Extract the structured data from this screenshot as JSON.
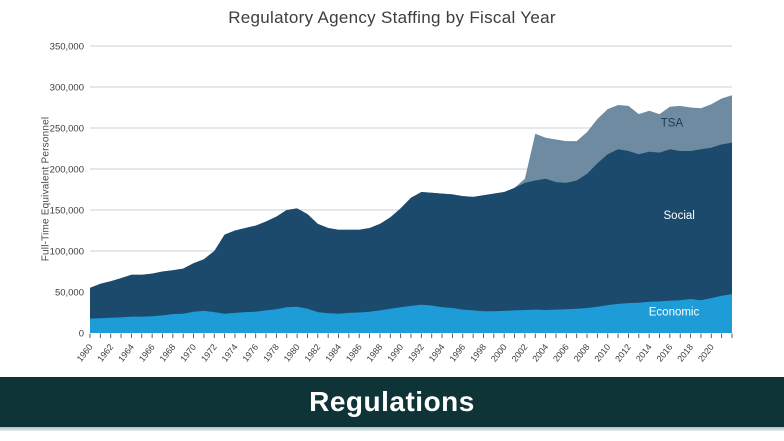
{
  "chart": {
    "title": "Regulatory Agency Staffing by Fiscal Year",
    "ylabel": "Full-Time Equivalent Personnel"
  },
  "banner": {
    "label": "Regulations",
    "background": "#0e3438",
    "text_color": "#ffffff"
  },
  "chart_data": {
    "type": "area",
    "stacked": true,
    "title": "Regulatory Agency Staffing by Fiscal Year",
    "xlabel": "",
    "ylabel": "Full-Time Equivalent Personnel",
    "x_start": 1960,
    "x_end": 2022,
    "ylim": [
      0,
      350000
    ],
    "grid": "horizontal",
    "legend": "inline-area-labels",
    "y_ticks": [
      0,
      50000,
      100000,
      150000,
      200000,
      250000,
      300000,
      350000
    ],
    "y_tick_labels": [
      "0",
      "50,000",
      "100,000",
      "150,000",
      "200,000",
      "250,000",
      "300,000",
      "350,000"
    ],
    "x_tick_labels": [
      "1960",
      "1962",
      "1964",
      "1966",
      "1968",
      "1970",
      "1972",
      "1974",
      "1976",
      "1978",
      "1980",
      "1982",
      "1984",
      "1986",
      "1988",
      "1990",
      "1992",
      "1994",
      "1996",
      "1998",
      "2000",
      "2002",
      "2004",
      "2006",
      "2008",
      "2010",
      "2012",
      "2014",
      "2016",
      "2018",
      "2020"
    ],
    "colors": {
      "grid": "#cbd0d4",
      "axis_text": "#3c3c3c",
      "tick": "#4a4a4a"
    },
    "series": [
      {
        "name": "Economic",
        "color": "#1e9cd8",
        "values": [
          17500,
          18000,
          18500,
          19000,
          20000,
          20000,
          20500,
          21500,
          23000,
          23500,
          26000,
          27000,
          25500,
          23500,
          24500,
          25500,
          26000,
          27500,
          29000,
          31500,
          32000,
          29500,
          25500,
          24000,
          23500,
          24500,
          25000,
          26000,
          27500,
          29500,
          31500,
          33000,
          34500,
          33500,
          31500,
          30500,
          28500,
          27500,
          26500,
          26500,
          27000,
          27500,
          28000,
          28500,
          28000,
          28500,
          29000,
          29500,
          30500,
          32000,
          34000,
          35500,
          36500,
          37000,
          38000,
          38500,
          39500,
          40000,
          41500,
          40000,
          42500,
          45500,
          47500
        ]
      },
      {
        "name": "Social",
        "color": "#1b4a6d",
        "values": [
          37500,
          42000,
          44500,
          48000,
          51000,
          51000,
          52000,
          53500,
          53500,
          55000,
          59000,
          63000,
          74500,
          96500,
          100500,
          102500,
          105000,
          108500,
          113000,
          118500,
          120000,
          115500,
          107500,
          104000,
          102500,
          101500,
          101000,
          102000,
          105500,
          111500,
          120500,
          132000,
          137500,
          137500,
          138500,
          138500,
          138500,
          138500,
          141500,
          143500,
          145000,
          149500,
          155000,
          157500,
          160000,
          155500,
          154000,
          156500,
          163500,
          175000,
          184000,
          188500,
          185500,
          181000,
          183000,
          181500,
          184500,
          182000,
          180500,
          184000,
          183500,
          184500,
          184500
        ]
      },
      {
        "name": "TSA",
        "color": "#6e8ba2",
        "values": [
          0,
          0,
          0,
          0,
          0,
          0,
          0,
          0,
          0,
          0,
          0,
          0,
          0,
          0,
          0,
          0,
          0,
          0,
          0,
          0,
          0,
          0,
          0,
          0,
          0,
          0,
          0,
          0,
          0,
          0,
          0,
          0,
          0,
          0,
          0,
          0,
          0,
          0,
          0,
          0,
          0,
          0,
          5000,
          57000,
          50000,
          52000,
          51000,
          48000,
          51000,
          54000,
          55000,
          54000,
          55000,
          49000,
          50000,
          47000,
          52000,
          55000,
          53000,
          50000,
          53000,
          56000,
          58000
        ]
      }
    ],
    "series_labels": [
      {
        "text": "TSA",
        "year": 2016.2,
        "value": 252000,
        "color": "#1d3a50"
      },
      {
        "text": "Social",
        "year": 2016.9,
        "value": 139000,
        "color": "#ffffff"
      },
      {
        "text": "Economic",
        "year": 2016.4,
        "value": 21500,
        "color": "#ffffff"
      }
    ]
  }
}
